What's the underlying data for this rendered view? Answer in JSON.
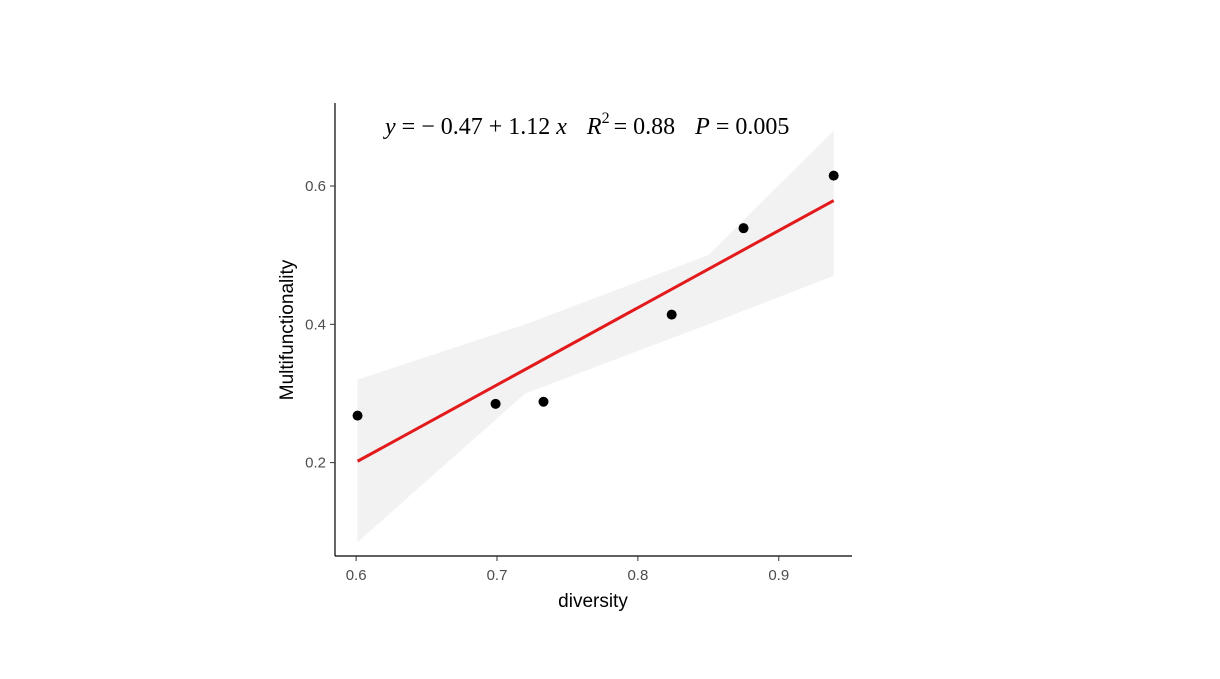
{
  "chart_data": {
    "type": "scatter",
    "xlabel": "diversity",
    "ylabel": "Multifunctionality",
    "xlim": [
      0.585,
      0.952
    ],
    "ylim": [
      0.065,
      0.72
    ],
    "x_ticks": [
      0.6,
      0.7,
      0.8,
      0.9
    ],
    "x_tick_labels": [
      "0.6",
      "0.7",
      "0.8",
      "0.9"
    ],
    "y_ticks": [
      0.2,
      0.4,
      0.6
    ],
    "y_tick_labels": [
      "0.2",
      "0.4",
      "0.6"
    ],
    "points": [
      {
        "x": 0.601,
        "y": 0.268
      },
      {
        "x": 0.699,
        "y": 0.285
      },
      {
        "x": 0.733,
        "y": 0.288
      },
      {
        "x": 0.824,
        "y": 0.414
      },
      {
        "x": 0.875,
        "y": 0.539
      },
      {
        "x": 0.939,
        "y": 0.615
      }
    ],
    "fit": {
      "intercept": -0.47,
      "slope": 1.12,
      "x_range": [
        0.601,
        0.939
      ],
      "line_y": [
        0.202,
        0.579
      ],
      "ci_lower": [
        0.085,
        0.3,
        0.4,
        0.47
      ],
      "ci_upper": [
        0.32,
        0.4,
        0.5,
        0.68
      ],
      "ci_x": [
        0.601,
        0.72,
        0.85,
        0.939
      ]
    },
    "annotation": {
      "y_sym": "y",
      "eq_rest": "= − 0.47 + 1.12",
      "x_sym": "x",
      "r_sym": "R",
      "r_exp": "2",
      "r_val": "= 0.88",
      "p_sym": "P",
      "p_val": "= 0.005"
    },
    "grid": false,
    "colors": {
      "points": "#000000",
      "fit_line": "#e31a1c",
      "ci_band": "#f2f2f2",
      "axis": "#000000"
    }
  }
}
